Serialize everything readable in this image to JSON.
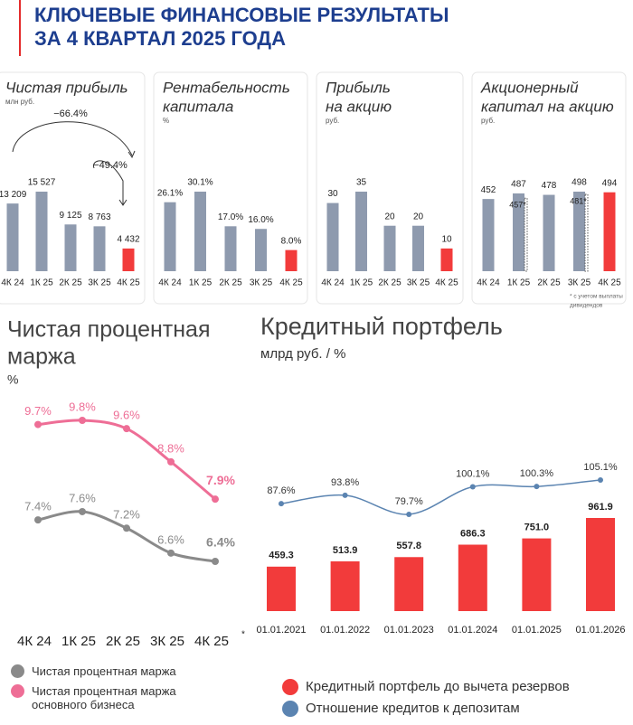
{
  "header": {
    "title_lines": [
      "КЛЮЧЕВЫЕ ФИНАНСОВЫЕ РЕЗУЛЬТАТЫ",
      "ЗА 4 КВАРТАЛ 2025 ГОДА"
    ]
  },
  "chart_data": [
    {
      "type": "bar",
      "title": [
        "Чистая прибыль"
      ],
      "subtitle": "млн руб.",
      "categories": [
        "4К 24",
        "1К 25",
        "2К 25",
        "3К 25",
        "4К 25"
      ],
      "values": [
        13209,
        15527,
        9125,
        8763,
        4432
      ],
      "value_labels": [
        "13 209",
        "15 527",
        "9 125",
        "8 763",
        "4 432"
      ],
      "colors": [
        "#8e9aae",
        "#8e9aae",
        "#8e9aae",
        "#8e9aae",
        "#f23b3b"
      ],
      "annotations": [
        "−66.4%",
        "−49.4%"
      ]
    },
    {
      "type": "bar",
      "title": [
        "Рентабельность",
        "капитала"
      ],
      "subtitle": "%",
      "categories": [
        "4К 24",
        "1К 25",
        "2К 25",
        "3К 25",
        "4К 25"
      ],
      "values": [
        26.1,
        30.1,
        17.0,
        16.0,
        8.0
      ],
      "value_labels": [
        "26.1%",
        "30.1%",
        "17.0%",
        "16.0%",
        "8.0%"
      ],
      "colors": [
        "#8e9aae",
        "#8e9aae",
        "#8e9aae",
        "#8e9aae",
        "#f23b3b"
      ]
    },
    {
      "type": "bar",
      "title": [
        "Прибыль",
        "на акцию"
      ],
      "subtitle": "руб.",
      "categories": [
        "4К 24",
        "1К 25",
        "2К 25",
        "3К 25",
        "4К 25"
      ],
      "values": [
        30,
        35,
        20,
        20,
        10
      ],
      "colors": [
        "#8e9aae",
        "#8e9aae",
        "#8e9aae",
        "#8e9aae",
        "#f23b3b"
      ]
    },
    {
      "type": "bar",
      "title": [
        "Акционерный",
        "капитал на акцию"
      ],
      "subtitle": "руб.",
      "categories": [
        "4К 24",
        "1К 25",
        "2К 25",
        "3К 25",
        "4К 25"
      ],
      "values": [
        452,
        487,
        478,
        498,
        494
      ],
      "colors": [
        "#8e9aae",
        "#8e9aae",
        "#8e9aae",
        "#8e9aae",
        "#f23b3b"
      ],
      "adjusted_values": [
        null,
        457,
        null,
        481,
        null
      ],
      "adjusted_value_labels": [
        null,
        "457*",
        null,
        "481*",
        null
      ],
      "footnote": [
        "* с учетом выплаты",
        "дивидендов"
      ]
    },
    {
      "type": "line",
      "title": [
        "Чистая процентная",
        "маржа"
      ],
      "subtitle": "%",
      "categories": [
        "4К 24",
        "1К 25",
        "2К 25",
        "3К 25",
        "4К 25"
      ],
      "annotation": "*",
      "series": [
        {
          "name": "Чистая процентная маржа",
          "color": "#8a8a8a",
          "values": [
            7.4,
            7.6,
            7.2,
            6.6,
            6.4
          ],
          "value_labels": [
            "7.4%",
            "7.6%",
            "7.2%",
            "6.6%",
            "6.4%"
          ]
        },
        {
          "name": "Чистая процентная маржа основного бизнеса",
          "color": "#ee6e96",
          "values": [
            9.7,
            9.8,
            9.6,
            8.8,
            7.9
          ],
          "value_labels": [
            "9.7%",
            "9.8%",
            "9.6%",
            "8.8%",
            "7.9%"
          ]
        }
      ]
    },
    {
      "type": "combo",
      "title": "Кредитный портфель",
      "subtitle": "млрд руб. / %",
      "categories": [
        "01.01.2021",
        "01.01.2022",
        "01.01.2023",
        "01.01.2024",
        "01.01.2025",
        "01.01.2026"
      ],
      "series": [
        {
          "name": "Кредитный портфель до вычета резервов",
          "color": "#f23b3b",
          "kind": "bar",
          "values": [
            459.3,
            513.9,
            557.8,
            686.3,
            751.0,
            961.9
          ],
          "value_labels": [
            "459.3",
            "513.9",
            "557.8",
            "686.3",
            "751.0",
            "961.9"
          ]
        },
        {
          "name": "Отношение кредитов к депозитам",
          "color": "#5b84b1",
          "kind": "line",
          "axis": "y2",
          "values": [
            87.6,
            93.8,
            79.7,
            100.1,
            100.3,
            105.1
          ],
          "value_labels": [
            "87.6%",
            "93.8%",
            "79.7%",
            "100.1%",
            "100.3%",
            "105.1%"
          ]
        }
      ]
    }
  ]
}
